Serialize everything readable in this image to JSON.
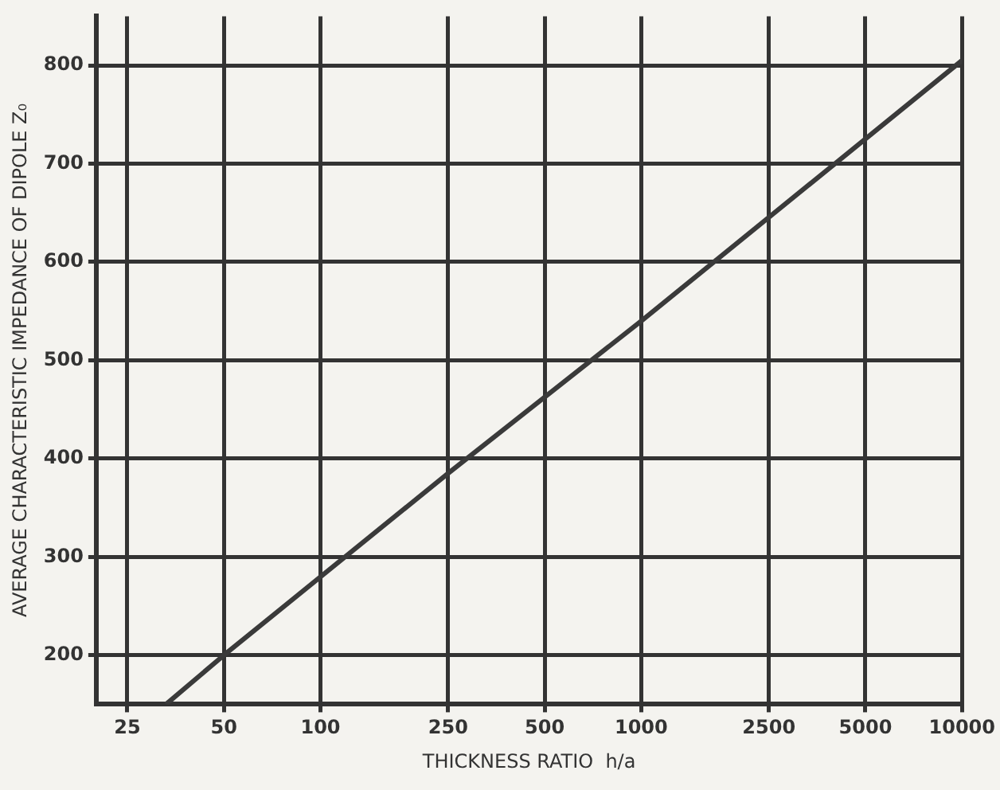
{
  "chart_data": {
    "type": "line",
    "xlabel": "THICKNESS RATIO  h/a",
    "ylabel": "AVERAGE CHARACTERISTIC IMPEDANCE OF DIPOLE Z₀",
    "x": [
      33,
      50,
      250,
      1000,
      10000
    ],
    "series": [
      {
        "color": "#3a3a3a",
        "values": [
          150,
          200,
          385,
          540,
          805
        ]
      }
    ],
    "log": "x",
    "xlim": [
      20,
      10000
    ],
    "ylim": [
      150,
      850
    ],
    "xticks": [
      25,
      50,
      100,
      250,
      500,
      1000,
      2500,
      5000,
      10000
    ],
    "yticks": [
      200,
      300,
      400,
      500,
      600,
      700,
      800
    ],
    "grid": true,
    "legend": false,
    "marker": "none",
    "line_style": "solid"
  }
}
